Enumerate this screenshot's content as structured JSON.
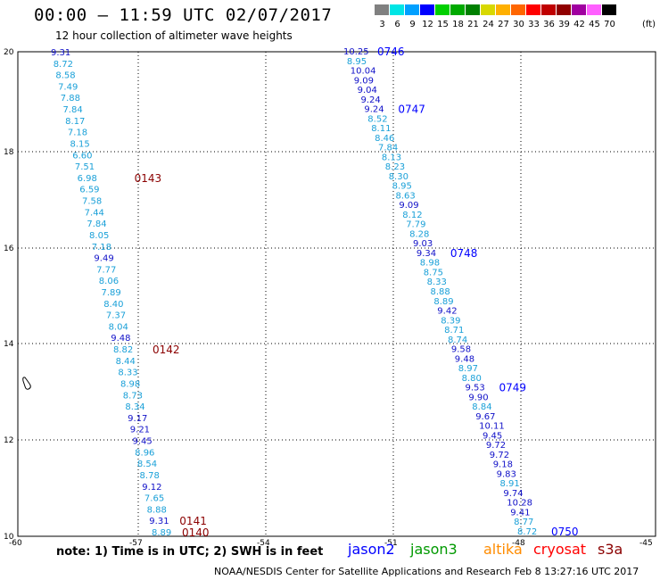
{
  "header": {
    "title": "00:00 – 11:59 UTC 02/07/2017",
    "subtitle": "12 hour collection of altimeter wave heights"
  },
  "color_scale": {
    "labels": [
      "3",
      "6",
      "9",
      "12",
      "15",
      "18",
      "21",
      "24",
      "27",
      "30",
      "33",
      "36",
      "39",
      "42",
      "45",
      "70"
    ],
    "colors": [
      "#808080",
      "#00e5e5",
      "#00a0ff",
      "#0000ff",
      "#00d000",
      "#00aa00",
      "#008000",
      "#d8d800",
      "#ffb000",
      "#ff6600",
      "#ff0000",
      "#c00000",
      "#900000",
      "#a000a0",
      "#ff60ff",
      "#000000"
    ],
    "unit": "(ft)"
  },
  "map": {
    "x_ticks": [
      "-60",
      "-57",
      "-54",
      "-51",
      "-48",
      "-45"
    ],
    "y_ticks": [
      "20",
      "18",
      "16",
      "14",
      "12",
      "10"
    ],
    "tracks": [
      {
        "name": "west",
        "labels": [
          {
            "text": "0143",
            "color": "#8b0000"
          },
          {
            "text": "0142",
            "color": "#8b0000"
          },
          {
            "text": "0141",
            "color": "#8b0000"
          },
          {
            "text": "0140",
            "color": "#8b0000"
          }
        ],
        "points": [
          {
            "v": "9.31",
            "c": "#1010c8"
          },
          {
            "v": "8.72",
            "c": "#1aa0d8"
          },
          {
            "v": "8.58",
            "c": "#1aa0d8"
          },
          {
            "v": "7.49",
            "c": "#1aa0d8"
          },
          {
            "v": "7.88",
            "c": "#1aa0d8"
          },
          {
            "v": "7.84",
            "c": "#1aa0d8"
          },
          {
            "v": "8.17",
            "c": "#1aa0d8"
          },
          {
            "v": "7.18",
            "c": "#1aa0d8"
          },
          {
            "v": "8.15",
            "c": "#1aa0d8"
          },
          {
            "v": "6.60",
            "c": "#1aa0d8"
          },
          {
            "v": "7.51",
            "c": "#1aa0d8"
          },
          {
            "v": "6.98",
            "c": "#1aa0d8"
          },
          {
            "v": "6.59",
            "c": "#1aa0d8"
          },
          {
            "v": "7.58",
            "c": "#1aa0d8"
          },
          {
            "v": "7.44",
            "c": "#1aa0d8"
          },
          {
            "v": "7.84",
            "c": "#1aa0d8"
          },
          {
            "v": "8.05",
            "c": "#1aa0d8"
          },
          {
            "v": "7.18",
            "c": "#1aa0d8"
          },
          {
            "v": "9.49",
            "c": "#1010c8"
          },
          {
            "v": "7.77",
            "c": "#1aa0d8"
          },
          {
            "v": "8.06",
            "c": "#1aa0d8"
          },
          {
            "v": "7.89",
            "c": "#1aa0d8"
          },
          {
            "v": "8.40",
            "c": "#1aa0d8"
          },
          {
            "v": "7.37",
            "c": "#1aa0d8"
          },
          {
            "v": "8.04",
            "c": "#1aa0d8"
          },
          {
            "v": "9.48",
            "c": "#1010c8"
          },
          {
            "v": "8.82",
            "c": "#1aa0d8"
          },
          {
            "v": "8.44",
            "c": "#1aa0d8"
          },
          {
            "v": "8.33",
            "c": "#1aa0d8"
          },
          {
            "v": "8.98",
            "c": "#1aa0d8"
          },
          {
            "v": "8.73",
            "c": "#1aa0d8"
          },
          {
            "v": "8.34",
            "c": "#1aa0d8"
          },
          {
            "v": "9.17",
            "c": "#1010c8"
          },
          {
            "v": "9.21",
            "c": "#1010c8"
          },
          {
            "v": "9.45",
            "c": "#1010c8"
          },
          {
            "v": "8.96",
            "c": "#1aa0d8"
          },
          {
            "v": "8.54",
            "c": "#1aa0d8"
          },
          {
            "v": "8.78",
            "c": "#1aa0d8"
          },
          {
            "v": "9.12",
            "c": "#1010c8"
          },
          {
            "v": "7.65",
            "c": "#1aa0d8"
          },
          {
            "v": "8.88",
            "c": "#1aa0d8"
          },
          {
            "v": "9.31",
            "c": "#1010c8"
          },
          {
            "v": "8.89",
            "c": "#1aa0d8"
          }
        ]
      },
      {
        "name": "east",
        "labels": [
          {
            "text": "0746",
            "color": "#0000ff"
          },
          {
            "text": "0747",
            "color": "#0000ff"
          },
          {
            "text": "0748",
            "color": "#0000ff"
          },
          {
            "text": "0749",
            "color": "#0000ff"
          },
          {
            "text": "0750",
            "color": "#0000ff"
          }
        ],
        "points": [
          {
            "v": "10.25",
            "c": "#1010c8"
          },
          {
            "v": "8.95",
            "c": "#1aa0d8"
          },
          {
            "v": "10.04",
            "c": "#1010c8"
          },
          {
            "v": "9.09",
            "c": "#1010c8"
          },
          {
            "v": "9.04",
            "c": "#1010c8"
          },
          {
            "v": "9.24",
            "c": "#1010c8"
          },
          {
            "v": "9.24",
            "c": "#1010c8"
          },
          {
            "v": "8.52",
            "c": "#1aa0d8"
          },
          {
            "v": "8.11",
            "c": "#1aa0d8"
          },
          {
            "v": "8.46",
            "c": "#1aa0d8"
          },
          {
            "v": "7.84",
            "c": "#1aa0d8"
          },
          {
            "v": "8.13",
            "c": "#1aa0d8"
          },
          {
            "v": "8.23",
            "c": "#1aa0d8"
          },
          {
            "v": "8.30",
            "c": "#1aa0d8"
          },
          {
            "v": "8.95",
            "c": "#1aa0d8"
          },
          {
            "v": "8.63",
            "c": "#1aa0d8"
          },
          {
            "v": "9.09",
            "c": "#1010c8"
          },
          {
            "v": "8.12",
            "c": "#1aa0d8"
          },
          {
            "v": "7.79",
            "c": "#1aa0d8"
          },
          {
            "v": "8.28",
            "c": "#1aa0d8"
          },
          {
            "v": "9.03",
            "c": "#1010c8"
          },
          {
            "v": "9.34",
            "c": "#1010c8"
          },
          {
            "v": "8.98",
            "c": "#1aa0d8"
          },
          {
            "v": "8.75",
            "c": "#1aa0d8"
          },
          {
            "v": "8.33",
            "c": "#1aa0d8"
          },
          {
            "v": "8.88",
            "c": "#1aa0d8"
          },
          {
            "v": "8.89",
            "c": "#1aa0d8"
          },
          {
            "v": "9.42",
            "c": "#1010c8"
          },
          {
            "v": "8.39",
            "c": "#1aa0d8"
          },
          {
            "v": "8.71",
            "c": "#1aa0d8"
          },
          {
            "v": "8.74",
            "c": "#1aa0d8"
          },
          {
            "v": "9.58",
            "c": "#1010c8"
          },
          {
            "v": "9.48",
            "c": "#1010c8"
          },
          {
            "v": "8.97",
            "c": "#1aa0d8"
          },
          {
            "v": "8.80",
            "c": "#1aa0d8"
          },
          {
            "v": "9.53",
            "c": "#1010c8"
          },
          {
            "v": "9.90",
            "c": "#1010c8"
          },
          {
            "v": "8.84",
            "c": "#1aa0d8"
          },
          {
            "v": "9.67",
            "c": "#1010c8"
          },
          {
            "v": "10.11",
            "c": "#1010c8"
          },
          {
            "v": "9.45",
            "c": "#1010c8"
          },
          {
            "v": "9.72",
            "c": "#1010c8"
          },
          {
            "v": "9.72",
            "c": "#1010c8"
          },
          {
            "v": "9.18",
            "c": "#1010c8"
          },
          {
            "v": "9.83",
            "c": "#1010c8"
          },
          {
            "v": "8.91",
            "c": "#1aa0d8"
          },
          {
            "v": "9.74",
            "c": "#1010c8"
          },
          {
            "v": "10.28",
            "c": "#1010c8"
          },
          {
            "v": "9.41",
            "c": "#1010c8"
          },
          {
            "v": "8.77",
            "c": "#1aa0d8"
          },
          {
            "v": "8.72",
            "c": "#1aa0d8"
          }
        ]
      }
    ]
  },
  "footer": {
    "note": "note: 1) Time is in UTC; 2) SWH is in feet",
    "legend": [
      {
        "name": "jason2",
        "color": "#0000ff"
      },
      {
        "name": "jason3",
        "color": "#009900"
      },
      {
        "name": "altika",
        "color": "#ff8c00"
      },
      {
        "name": "cryosat",
        "color": "#ff0000"
      },
      {
        "name": "s3a",
        "color": "#8b0000"
      }
    ],
    "credit": "NOAA/NESDIS Center for Satellite Applications and Research   Feb  8 13:27:16 UTC 2017"
  }
}
